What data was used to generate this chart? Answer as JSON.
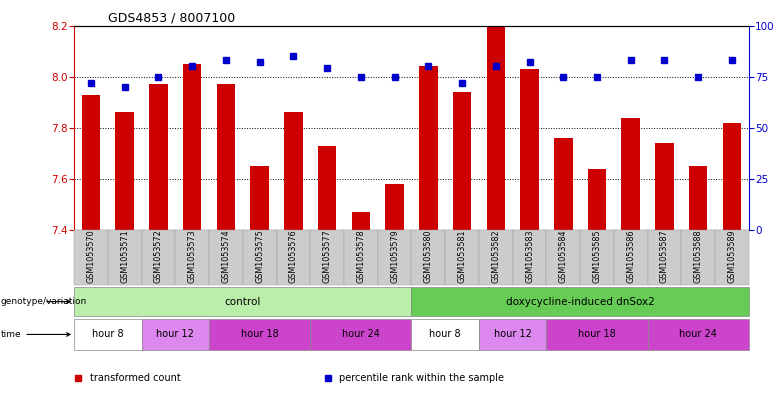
{
  "title": "GDS4853 / 8007100",
  "samples": [
    "GSM1053570",
    "GSM1053571",
    "GSM1053572",
    "GSM1053573",
    "GSM1053574",
    "GSM1053575",
    "GSM1053576",
    "GSM1053577",
    "GSM1053578",
    "GSM1053579",
    "GSM1053580",
    "GSM1053581",
    "GSM1053582",
    "GSM1053583",
    "GSM1053584",
    "GSM1053585",
    "GSM1053586",
    "GSM1053587",
    "GSM1053588",
    "GSM1053589"
  ],
  "transformed_count": [
    7.93,
    7.86,
    7.97,
    8.05,
    7.97,
    7.65,
    7.86,
    7.73,
    7.47,
    7.58,
    8.04,
    7.94,
    8.2,
    8.03,
    7.76,
    7.64,
    7.84,
    7.74,
    7.65,
    7.82
  ],
  "percentile_rank": [
    72,
    70,
    75,
    80,
    83,
    82,
    85,
    79,
    75,
    75,
    80,
    72,
    80,
    82,
    75,
    75,
    83,
    83,
    75,
    83
  ],
  "ylim_left": [
    7.4,
    8.2
  ],
  "ylim_right": [
    0,
    100
  ],
  "yticks_left": [
    7.4,
    7.6,
    7.8,
    8.0,
    8.2
  ],
  "yticks_right": [
    0,
    25,
    50,
    75,
    100
  ],
  "bar_color": "#cc0000",
  "dot_color": "#0000cc",
  "bar_baseline": 7.4,
  "genotype_groups": [
    {
      "label": "control",
      "start": 0,
      "end": 9,
      "color": "#bbeeaa"
    },
    {
      "label": "doxycycline-induced dnSox2",
      "start": 10,
      "end": 19,
      "color": "#66cc55"
    }
  ],
  "time_groups": [
    {
      "label": "hour 8",
      "start": 0,
      "end": 1,
      "color": "#ffffff"
    },
    {
      "label": "hour 12",
      "start": 2,
      "end": 3,
      "color": "#dd88ee"
    },
    {
      "label": "hour 18",
      "start": 4,
      "end": 6,
      "color": "#cc44cc"
    },
    {
      "label": "hour 24",
      "start": 7,
      "end": 9,
      "color": "#cc44cc"
    },
    {
      "label": "hour 8",
      "start": 10,
      "end": 11,
      "color": "#ffffff"
    },
    {
      "label": "hour 12",
      "start": 12,
      "end": 13,
      "color": "#dd88ee"
    },
    {
      "label": "hour 18",
      "start": 14,
      "end": 16,
      "color": "#cc44cc"
    },
    {
      "label": "hour 24",
      "start": 17,
      "end": 19,
      "color": "#cc44cc"
    }
  ],
  "left_axis_color": "#cc0000",
  "right_axis_color": "#0000cc",
  "legend_items": [
    {
      "label": "transformed count",
      "color": "#cc0000"
    },
    {
      "label": "percentile rank within the sample",
      "color": "#0000cc"
    }
  ],
  "sample_bg_color": "#cccccc",
  "geno_label": "genotype/variation",
  "time_label": "time"
}
